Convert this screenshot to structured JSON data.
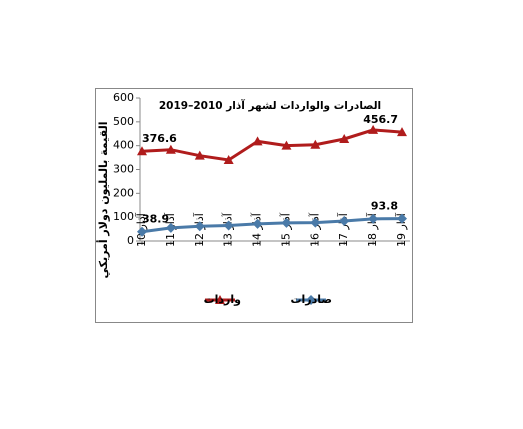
{
  "chart_data": {
    "type": "line",
    "title": "الصادرات والواردات لشهر آذار 2010–2019",
    "y_label": "القيمة بالمليون دولار أمريكي",
    "categories": [
      "آذار 10",
      "آذار 11",
      "آذار 12",
      "آذار 13",
      "آذار 14",
      "آذار 15",
      "آذار 16",
      "آذار 17",
      "آذار 18",
      "آذار 19"
    ],
    "series": [
      {
        "name": "واردات",
        "color": "#b01c1c",
        "marker": "triangle",
        "values": [
          376.6,
          383,
          358,
          340,
          418,
          400,
          404,
          428,
          466,
          456.7
        ]
      },
      {
        "name": "صادرات",
        "color": "#4a7aa8",
        "marker": "diamond",
        "values": [
          38.9,
          55,
          62,
          65,
          72,
          76,
          77,
          84,
          93,
          93.8
        ]
      }
    ],
    "ylim": [
      0,
      600
    ],
    "yticks": [
      0,
      100,
      200,
      300,
      400,
      500,
      600
    ],
    "grid": false,
    "legend": "bottom"
  }
}
